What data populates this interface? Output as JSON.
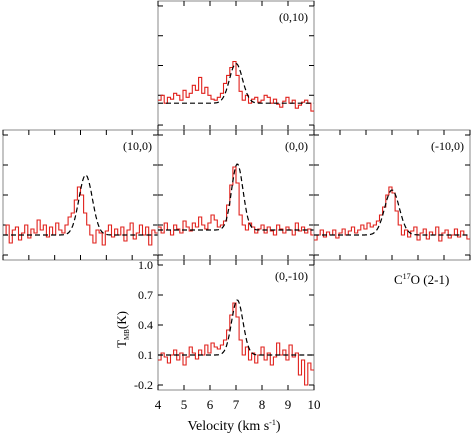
{
  "chart_data": {
    "type": "line",
    "title": "",
    "molecule": "C",
    "molecule_iso": "17",
    "molecule_rest": "O (2-1)",
    "xlabel": "Velocity (km s",
    "xlabel_sup": "-1",
    "xlabel_end": ")",
    "ylabel_T": "T",
    "ylabel_sub": "MB",
    "ylabel_end": "(K)",
    "xlim": [
      4,
      10
    ],
    "ylim": [
      -0.25,
      1.05
    ],
    "x_ticks": [
      "4",
      "5",
      "6",
      "7",
      "8",
      "9",
      "10"
    ],
    "y_ticks": [
      "1.0",
      "0.7",
      "0.4",
      "0.1",
      "-0.2"
    ],
    "y_tick_values": [
      1.0,
      0.7,
      0.4,
      0.1,
      -0.2
    ],
    "series_style": {
      "observed": "#e0201b",
      "fit": "#000000",
      "frame": "#888888"
    },
    "panels": [
      {
        "offset": "(0,10)",
        "fit": {
          "center": 7.0,
          "amplitude": 0.4,
          "sigma": 0.25,
          "baseline": 0.02
        },
        "observed": [
          0.05,
          0.1,
          0.02,
          0.08,
          0.06,
          0.12,
          0.1,
          0.05,
          0.15,
          0.08,
          0.12,
          0.2,
          0.15,
          0.28,
          0.12,
          0.18,
          0.1,
          0.06,
          0.05,
          0.08,
          0.12,
          0.22,
          0.3,
          0.38,
          0.44,
          0.3,
          0.14,
          0.05,
          0.1,
          0.02,
          0.06,
          0.08,
          0.03,
          0.05,
          0.1,
          0.08,
          0.02,
          0.06,
          0.01,
          -0.02,
          0.04,
          0.08,
          0.02,
          0.05,
          -0.03,
          0.0,
          0.03,
          0.05,
          0.02,
          -0.06
        ]
      },
      {
        "offset": "(10,0)",
        "fit": {
          "center": 7.2,
          "amplitude": 0.6,
          "sigma": 0.26,
          "baseline": 0.0
        },
        "observed": [
          0.0,
          0.1,
          -0.08,
          0.05,
          0.08,
          -0.05,
          0.02,
          0.1,
          -0.03,
          0.06,
          0.02,
          0.15,
          0.05,
          0.1,
          -0.02,
          0.08,
          0.0,
          0.12,
          0.05,
          0.02,
          0.1,
          0.18,
          0.22,
          0.35,
          0.48,
          0.4,
          0.22,
          0.1,
          0.0,
          -0.08,
          0.05,
          0.02,
          -0.1,
          0.04,
          0.1,
          -0.02,
          0.06,
          0.0,
          0.08,
          -0.06,
          0.05,
          0.12,
          -0.04,
          0.02,
          0.1,
          0.0,
          0.08,
          -0.1,
          0.05,
          0.02
        ]
      },
      {
        "offset": "(0,0)",
        "fit": {
          "center": 7.05,
          "amplitude": 0.66,
          "sigma": 0.22,
          "baseline": 0.05
        },
        "observed": [
          0.08,
          0.02,
          0.12,
          0.05,
          0.0,
          0.1,
          0.06,
          0.02,
          0.14,
          0.08,
          0.04,
          0.12,
          0.08,
          0.18,
          0.1,
          0.06,
          0.12,
          0.2,
          0.15,
          0.08,
          0.1,
          0.14,
          0.3,
          0.5,
          0.68,
          0.52,
          0.2,
          0.1,
          0.05,
          0.12,
          0.08,
          0.02,
          0.06,
          0.1,
          0.02,
          0.08,
          0.04,
          0.0,
          0.1,
          0.06,
          0.02,
          0.08,
          0.05,
          0.0,
          0.12,
          0.04,
          0.08,
          0.02,
          0.06,
          0.0
        ]
      },
      {
        "offset": "(-10,0)",
        "fit": {
          "center": 7.0,
          "amplitude": 0.45,
          "sigma": 0.28,
          "baseline": 0.0
        },
        "observed": [
          -0.05,
          0.0,
          0.05,
          -0.02,
          0.03,
          0.0,
          0.05,
          -0.03,
          0.02,
          0.06,
          0.0,
          0.04,
          0.08,
          0.02,
          0.05,
          0.1,
          0.06,
          0.12,
          0.08,
          0.1,
          0.14,
          0.2,
          0.28,
          0.4,
          0.48,
          0.42,
          0.24,
          0.1,
          0.0,
          0.05,
          -0.02,
          0.04,
          0.08,
          -0.05,
          0.02,
          0.06,
          -0.04,
          0.03,
          0.0,
          0.08,
          -0.06,
          0.02,
          0.05,
          -0.03,
          0.0,
          0.06,
          -0.02,
          0.04,
          0.0,
          -0.04
        ]
      },
      {
        "offset": "(0,-10)",
        "fit": {
          "center": 7.05,
          "amplitude": 0.55,
          "sigma": 0.22,
          "baseline": 0.1
        },
        "observed": [
          0.05,
          0.12,
          0.08,
          0.02,
          0.1,
          0.15,
          0.05,
          0.12,
          0.0,
          0.08,
          0.18,
          0.12,
          0.06,
          0.15,
          0.1,
          0.2,
          0.12,
          0.22,
          0.18,
          0.16,
          0.2,
          0.25,
          0.35,
          0.5,
          0.62,
          0.48,
          0.25,
          0.1,
          0.18,
          0.05,
          0.12,
          0.02,
          0.1,
          0.18,
          0.05,
          0.12,
          0.0,
          0.08,
          0.22,
          0.1,
          0.15,
          0.05,
          0.2,
          0.08,
          0.12,
          -0.1,
          0.05,
          -0.2,
          0.02,
          -0.05
        ]
      }
    ]
  }
}
